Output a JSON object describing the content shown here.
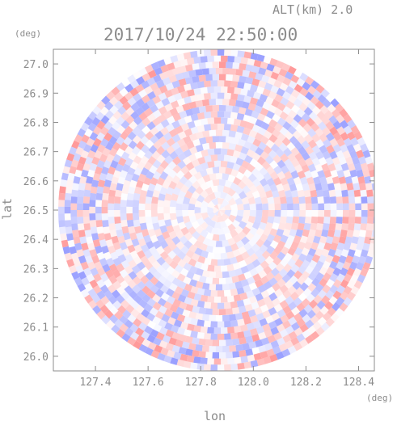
{
  "header": {
    "altitude_label": "ALT(km) 2.0",
    "datetime": "2017/10/24 22:50:00"
  },
  "chart_data": {
    "type": "heatmap",
    "description_free": true,
    "xlabel": "lon",
    "ylabel": "lat",
    "x_unit": "(deg)",
    "y_unit": "(deg)",
    "xlim": [
      127.24,
      128.46
    ],
    "ylim": [
      25.95,
      27.05
    ],
    "x_ticks": [
      127.4,
      127.6,
      127.8,
      128.0,
      128.2,
      128.4
    ],
    "x_tick_labels": [
      "127.4",
      "127.6",
      "127.8",
      "128.0",
      "128.2",
      "128.4"
    ],
    "y_ticks": [
      26.0,
      26.1,
      26.2,
      26.3,
      26.4,
      26.5,
      26.6,
      26.7,
      26.8,
      26.9,
      27.0
    ],
    "y_tick_labels": [
      "26.0",
      "26.1",
      "26.2",
      "26.3",
      "26.4",
      "26.5",
      "26.6",
      "26.7",
      "26.8",
      "26.9",
      "27.0"
    ],
    "center": {
      "lon": 127.87,
      "lat": 26.5
    },
    "radius_deg_lat": 0.55,
    "colors": {
      "positive": "#ff9a9a",
      "negative": "#9aa0ff",
      "axis": "#8c8c8c"
    },
    "grid": false
  }
}
